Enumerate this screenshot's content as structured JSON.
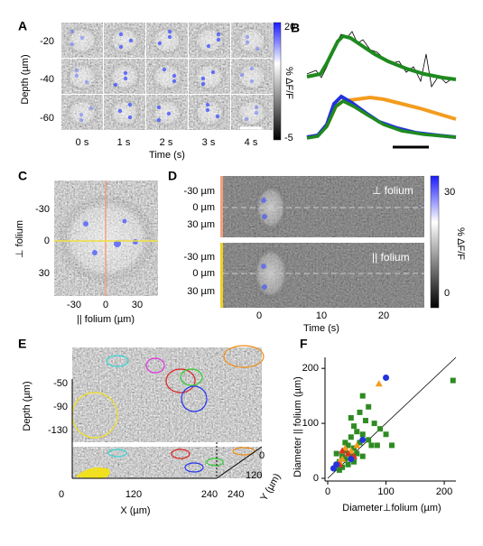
{
  "panel_a": {
    "letter": "A",
    "y_axis_label": "Depth (µm)",
    "yticks": [
      "-20",
      "-40",
      "-60"
    ],
    "times": [
      "0 s",
      "1 s",
      "2 s",
      "3 s",
      "4 s"
    ],
    "x_axis_label": "Time (s)",
    "colorbar": {
      "max": "20",
      "min": "-5",
      "label": "% ΔF/F"
    }
  },
  "panel_b": {
    "letter": "B"
  },
  "panel_c": {
    "letter": "C",
    "y_axis_label": "⊥ folium",
    "yticks": [
      "-30",
      "0",
      "30"
    ],
    "xticks": [
      "-30",
      "0",
      "30"
    ],
    "x_axis_label": "|| folium (µm)"
  },
  "panel_d": {
    "letter": "D",
    "top": {
      "label": "⊥ folium",
      "yticks": [
        "-30 µm",
        "0 µm",
        "30 µm"
      ]
    },
    "bottom": {
      "label": "|| folium",
      "yticks": [
        "-30 µm",
        "0 µm",
        "30 µm"
      ]
    },
    "xticks": [
      "0",
      "10",
      "20"
    ],
    "x_axis_label": "Time (s)",
    "colorbar": {
      "max": "30",
      "min": "0",
      "label": "% ΔF/F"
    }
  },
  "panel_e": {
    "letter": "E",
    "z_axis_label": "Depth (µm)",
    "zticks": [
      "-50",
      "-90",
      "-130"
    ],
    "xticks": [
      "0",
      "120",
      "240"
    ],
    "x_axis_label": "X (µm)",
    "yticks": [
      "0",
      "120",
      "240"
    ],
    "y_axis_label": "Y (µm)"
  },
  "chart_data": {
    "type": "scatter",
    "letter": "F",
    "x_label": "Diameter⊥folium (µm)",
    "y_label": "Diameter || folium (µm)",
    "xlim": [
      0,
      220
    ],
    "ylim": [
      0,
      220
    ],
    "xticks": [
      0,
      100,
      200
    ],
    "yticks": [
      0,
      100,
      200
    ],
    "identity_line": true,
    "series": [
      {
        "color": "#2e8b22",
        "marker": "square",
        "x": [
          215,
          60,
          70,
          55,
          65,
          80,
          45,
          50,
          40,
          60,
          35,
          30,
          45,
          25,
          20,
          15,
          30,
          40,
          50,
          70,
          90,
          100,
          75,
          55,
          25,
          35,
          20,
          60,
          45,
          85,
          30,
          15,
          40,
          110
        ],
        "values": [
          178,
          150,
          130,
          120,
          105,
          100,
          95,
          85,
          75,
          80,
          60,
          50,
          55,
          40,
          30,
          25,
          35,
          40,
          45,
          70,
          90,
          80,
          60,
          65,
          20,
          25,
          15,
          40,
          30,
          60,
          65,
          45,
          110,
          60
        ]
      },
      {
        "color": "#f39c1e",
        "marker": "triangle",
        "x": [
          88,
          30,
          40,
          25,
          50,
          20
        ],
        "values": [
          172,
          55,
          50,
          35,
          60,
          30
        ]
      },
      {
        "color": "#e03020",
        "marker": "triangle",
        "x": [
          35,
          20,
          45,
          25
        ],
        "values": [
          45,
          25,
          40,
          50
        ]
      },
      {
        "color": "#2233dd",
        "marker": "circle",
        "x": [
          100,
          10,
          40,
          15,
          60
        ],
        "values": [
          183,
          18,
          35,
          25,
          70
        ]
      }
    ]
  }
}
